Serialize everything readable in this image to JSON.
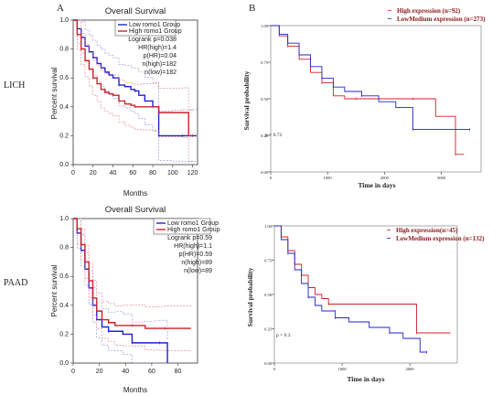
{
  "figure": {
    "panel_a_label": "A",
    "panel_b_label": "B",
    "row1_label": "LICH",
    "row2_label": "PAAD"
  },
  "colors": {
    "high": "#cc2229",
    "low": "#2222cc",
    "conf_high": "#e07a7f",
    "conf_low": "#8a8ad6"
  },
  "chart_data": [
    {
      "id": "A1",
      "type": "line",
      "title": "Overall Survival",
      "xlabel": "Months",
      "ylabel": "Percent survival",
      "xlim": [
        0,
        125
      ],
      "ylim": [
        0,
        1.0
      ],
      "xticks": [
        "0",
        "20",
        "40",
        "60",
        "80",
        "100",
        "120"
      ],
      "yticks": [
        "0.0",
        "0.2",
        "0.4",
        "0.6",
        "0.8",
        "1.0"
      ],
      "legend": [
        "Low romo1 Group",
        "High romo1 Group"
      ],
      "stats": [
        "Logrank p=0.038",
        "HR(high)=1.4",
        "p(HR)=0.04",
        "n(high)=182",
        "n(low)=182"
      ],
      "series": [
        {
          "name": "Low romo1 Group",
          "color": "low",
          "x": [
            0,
            4,
            8,
            12,
            16,
            20,
            24,
            28,
            32,
            36,
            40,
            46,
            52,
            58,
            62,
            66,
            72,
            80,
            86,
            100,
            110,
            124
          ],
          "y": [
            1,
            0.94,
            0.88,
            0.82,
            0.78,
            0.74,
            0.7,
            0.67,
            0.64,
            0.62,
            0.6,
            0.55,
            0.54,
            0.52,
            0.51,
            0.48,
            0.44,
            0.4,
            0.2,
            0.2,
            0.2,
            0.2
          ]
        },
        {
          "name": "High romo1 Group",
          "color": "high",
          "x": [
            0,
            4,
            8,
            12,
            16,
            20,
            24,
            28,
            32,
            36,
            40,
            46,
            52,
            58,
            62,
            70,
            82,
            86,
            110,
            116,
            120
          ],
          "y": [
            1,
            0.9,
            0.8,
            0.72,
            0.66,
            0.6,
            0.56,
            0.52,
            0.5,
            0.49,
            0.48,
            0.44,
            0.42,
            0.41,
            0.4,
            0.4,
            0.4,
            0.36,
            0.36,
            0.2,
            0.2
          ]
        }
      ]
    },
    {
      "id": "B1",
      "type": "line",
      "xlabel": "Time in days",
      "ylabel": "Survival probability",
      "xlim": [
        0,
        3700
      ],
      "ylim": [
        0,
        1.0
      ],
      "xticks": [
        "0",
        "1000",
        "2000",
        "3000"
      ],
      "yticks": [
        "0.00",
        "0.25",
        "0.50",
        "0.75",
        "1.00"
      ],
      "legend": [
        "High expression (n=92)",
        "LowMedium expression (n=273)"
      ],
      "annotation": "p = 0.72",
      "series": [
        {
          "name": "High expression (n=92)",
          "color": "high",
          "x": [
            0,
            150,
            300,
            500,
            700,
            900,
            1100,
            1300,
            1500,
            1800,
            2200,
            2500,
            2900,
            3150,
            3250,
            3400
          ],
          "y": [
            1,
            0.93,
            0.86,
            0.77,
            0.68,
            0.61,
            0.52,
            0.5,
            0.5,
            0.5,
            0.5,
            0.5,
            0.38,
            0.38,
            0.12,
            0.12
          ]
        },
        {
          "name": "LowMedium expression (n=273)",
          "color": "low",
          "x": [
            0,
            150,
            300,
            500,
            700,
            900,
            1100,
            1300,
            1600,
            1900,
            2200,
            2500,
            2700,
            3000,
            3500
          ],
          "y": [
            1,
            0.94,
            0.88,
            0.8,
            0.72,
            0.64,
            0.58,
            0.55,
            0.52,
            0.48,
            0.44,
            0.29,
            0.29,
            0.29,
            0.29
          ]
        }
      ]
    },
    {
      "id": "A2",
      "type": "line",
      "title": "Overall Survival",
      "xlabel": "Months",
      "ylabel": "Percent survival",
      "xlim": [
        0,
        95
      ],
      "ylim": [
        0,
        1.0
      ],
      "xticks": [
        "0",
        "20",
        "40",
        "60",
        "80"
      ],
      "yticks": [
        "0.0",
        "0.2",
        "0.4",
        "0.6",
        "0.8",
        "1.0"
      ],
      "legend": [
        "Low romo1 Group",
        "High romo1 Group"
      ],
      "stats": [
        "Logrank p=0.59",
        "HR(high)=1.1",
        "p(HR)=0.59",
        "n(high)=89",
        "n(low)=89"
      ],
      "series": [
        {
          "name": "Low romo1 Group",
          "color": "low",
          "x": [
            0,
            3,
            6,
            9,
            12,
            15,
            18,
            22,
            27,
            32,
            38,
            45,
            55,
            62,
            66,
            72
          ],
          "y": [
            1,
            0.9,
            0.78,
            0.65,
            0.52,
            0.4,
            0.3,
            0.25,
            0.22,
            0.22,
            0.2,
            0.14,
            0.14,
            0.14,
            0.14,
            0
          ]
        },
        {
          "name": "High romo1 Group",
          "color": "high",
          "x": [
            0,
            3,
            6,
            9,
            12,
            15,
            18,
            22,
            27,
            32,
            38,
            45,
            55,
            65,
            70,
            90
          ],
          "y": [
            1,
            0.93,
            0.82,
            0.7,
            0.57,
            0.45,
            0.36,
            0.3,
            0.28,
            0.26,
            0.26,
            0.26,
            0.24,
            0.24,
            0.24,
            0.24
          ]
        }
      ]
    },
    {
      "id": "B2",
      "type": "line",
      "xlabel": "Time in days",
      "ylabel": "Survival probability",
      "xlim": [
        0,
        2700
      ],
      "ylim": [
        0,
        1.0
      ],
      "xticks": [
        "0",
        "1000",
        "2000"
      ],
      "yticks": [
        "0.00",
        "0.25",
        "0.50",
        "0.75",
        "1.00"
      ],
      "legend": [
        "High expression(n=45)",
        "LowMedium expression (n=132)"
      ],
      "annotation": "p = 0.3",
      "series": [
        {
          "name": "High expression(n=45)",
          "color": "high",
          "x": [
            0,
            100,
            200,
            300,
            400,
            500,
            600,
            700,
            800,
            900,
            1900,
            2100,
            2600
          ],
          "y": [
            1,
            0.92,
            0.82,
            0.72,
            0.64,
            0.55,
            0.5,
            0.47,
            0.43,
            0.43,
            0.43,
            0.22,
            0.22
          ]
        },
        {
          "name": "LowMedium expression (n=132)",
          "color": "low",
          "x": [
            0,
            100,
            200,
            300,
            400,
            500,
            600,
            700,
            900,
            1100,
            1400,
            1700,
            1900,
            2150,
            2250
          ],
          "y": [
            1,
            0.9,
            0.8,
            0.68,
            0.58,
            0.48,
            0.42,
            0.38,
            0.33,
            0.3,
            0.26,
            0.22,
            0.18,
            0.08,
            0.08
          ]
        }
      ]
    }
  ]
}
